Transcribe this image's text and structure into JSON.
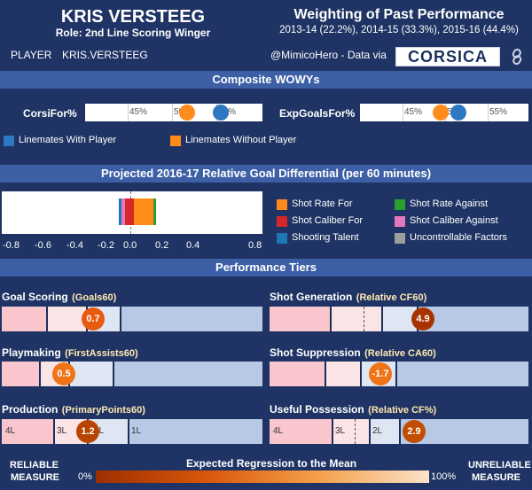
{
  "header": {
    "player_name": "KRIS VERSTEEG",
    "role": "Role: 2nd Line Scoring Winger",
    "weighting_title": "Weighting of Past Performance",
    "weighting_detail": "2013-14 (22.2%), 2014-15 (33.3%), 2015-16 (44.4%)",
    "player_label": "PLAYER",
    "player_id": "KRIS.VERSTEEG",
    "credit": "@MimicoHero - Data via",
    "logo_text": "CORSICA",
    "link_icon": "link-icon"
  },
  "wowy": {
    "section_title": "Composite WOWYs",
    "corsi": {
      "label": "CorsiFor%",
      "ticks": [
        "45%",
        "50%",
        "55%"
      ],
      "with_player": 55.3,
      "without_player": 51.5
    },
    "xg": {
      "label": "ExpGoalsFor%",
      "ticks": [
        "45%",
        "50%",
        "55%"
      ],
      "with_player": 51.7,
      "without_player": 49.6
    },
    "legend_with": "Linemates With Player",
    "legend_without": "Linemates Without Player",
    "colors": {
      "with": "#2d78c0",
      "without": "#ff8c1a"
    }
  },
  "projection": {
    "section_title": "Projected 2016-17 Relative Goal Differential (per 60 minutes)",
    "axis_ticks": [
      "-0.8",
      "-0.6",
      "-0.4",
      "-0.2",
      "0.0",
      "0.2",
      "0.4",
      "0.8"
    ],
    "legend": [
      {
        "label": "Shot Rate For",
        "color": "#ff8c1a"
      },
      {
        "label": "Shot Rate Against",
        "color": "#2ca02c"
      },
      {
        "label": "Shot Caliber For",
        "color": "#d62728"
      },
      {
        "label": "Shot Caliber Against",
        "color": "#e377c2"
      },
      {
        "label": "Shooting Talent",
        "color": "#1f77b4"
      },
      {
        "label": "Uncontrollable Factors",
        "color": "#9e9e9e"
      }
    ]
  },
  "tiers": {
    "section_title": "Performance Tiers",
    "goal_scoring": {
      "title": "Goal Scoring",
      "metric": "(Goals60)",
      "value": "0.7"
    },
    "shot_generation": {
      "title": "Shot Generation",
      "metric": "(Relative CF60)",
      "value": "4.9"
    },
    "playmaking": {
      "title": "Playmaking",
      "metric": "(FirstAssists60)",
      "value": "0.5"
    },
    "shot_suppression": {
      "title": "Shot Suppression",
      "metric": "(Relative CA60)",
      "value": "-1.7"
    },
    "production": {
      "title": "Production",
      "metric": "(PrimaryPoints60)",
      "value": "1.2",
      "labels": [
        "4L",
        "3L",
        "2L",
        "1L"
      ]
    },
    "useful_possession": {
      "title": "Useful Possession",
      "metric": "(Relative CF%)",
      "value": "2.9",
      "labels": [
        "4L",
        "3L",
        "2L",
        "1L"
      ]
    }
  },
  "regression": {
    "left_label_1": "RELIABLE",
    "left_label_2": "MEASURE",
    "title": "Expected Regression to the Mean",
    "min_label": "0%",
    "max_label": "100%",
    "right_label_1": "UNRELIABLE",
    "right_label_2": "MEASURE"
  }
}
